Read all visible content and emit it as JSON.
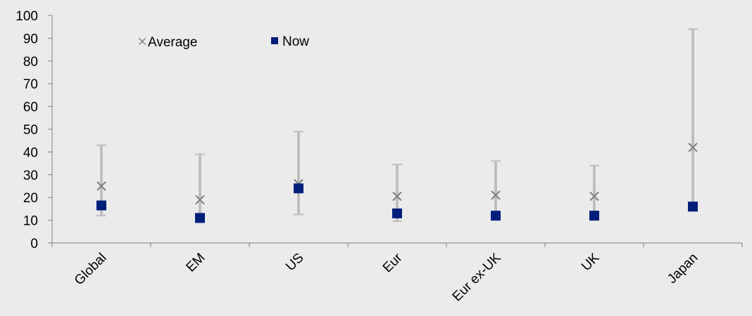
{
  "colors": {
    "background": "#ebebeb",
    "range": "#bfbfbf",
    "average": "#7f7f7f",
    "now": "#001f7a",
    "axis": "#7f7f7f"
  },
  "chart_data": {
    "type": "scatter",
    "title": "",
    "xlabel": "",
    "ylabel": "",
    "ylim": [
      0,
      100
    ],
    "yticks": [
      0,
      10,
      20,
      30,
      40,
      50,
      60,
      70,
      80,
      90,
      100
    ],
    "grid": false,
    "legend_position": "top-left",
    "categories": [
      "Global",
      "EM",
      "US",
      "Eur",
      "Eur ex-UK",
      "UK",
      "Japan"
    ],
    "range": {
      "low": [
        12,
        9,
        12.5,
        9.5,
        11,
        11,
        14
      ],
      "high": [
        43,
        39,
        49,
        34.5,
        36,
        34,
        94
      ]
    },
    "series": [
      {
        "name": "Average",
        "marker": "x",
        "values": [
          25,
          19,
          26,
          20.5,
          21,
          20.5,
          42
        ]
      },
      {
        "name": "Now",
        "marker": "square",
        "values": [
          16.5,
          11,
          24,
          13,
          12,
          12,
          16
        ]
      }
    ]
  }
}
